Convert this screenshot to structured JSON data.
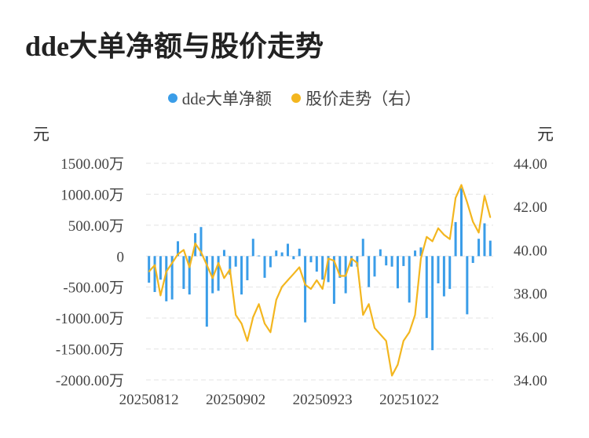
{
  "chart_data": {
    "type": "bar+line",
    "title": "dde大单净额与股价走势",
    "left_unit": "元",
    "right_unit": "元",
    "legend": [
      {
        "name": "dde大单净额",
        "color": "#3a9de8"
      },
      {
        "name": "股价走势（右）",
        "color": "#f3b61f"
      }
    ],
    "y_left": {
      "min": -2000,
      "max": 1500,
      "ticks": [
        {
          "value": 1500,
          "label": "1500.00万"
        },
        {
          "value": 1000,
          "label": "1000.00万"
        },
        {
          "value": 500,
          "label": "500.00万"
        },
        {
          "value": 0,
          "label": "0"
        },
        {
          "value": -500,
          "label": "-500.00万"
        },
        {
          "value": -1000,
          "label": "-1000.00万"
        },
        {
          "value": -1500,
          "label": "-1500.00万"
        },
        {
          "value": -2000,
          "label": "-2000.00万"
        }
      ]
    },
    "y_right": {
      "min": 34,
      "max": 44,
      "ticks": [
        {
          "value": 44,
          "label": "44.00"
        },
        {
          "value": 42,
          "label": "42.00"
        },
        {
          "value": 40,
          "label": "40.00"
        },
        {
          "value": 38,
          "label": "38.00"
        },
        {
          "value": 36,
          "label": "36.00"
        },
        {
          "value": 34,
          "label": "34.00"
        }
      ]
    },
    "x_ticks": [
      {
        "index": 0,
        "label": "20250812"
      },
      {
        "index": 15,
        "label": "20250902"
      },
      {
        "index": 30,
        "label": "20250923"
      },
      {
        "index": 45,
        "label": "20251022"
      }
    ],
    "grid": "horizontal-dashed",
    "series": [
      {
        "name": "dde大单净额",
        "type": "bar",
        "axis": "left",
        "color": "#3a9de8",
        "values": [
          -430,
          -580,
          -380,
          -730,
          -700,
          240,
          -530,
          -620,
          370,
          470,
          -1140,
          -600,
          -560,
          100,
          -300,
          -170,
          -620,
          -390,
          280,
          10,
          -350,
          -180,
          90,
          60,
          200,
          -50,
          120,
          -1070,
          -100,
          -250,
          -380,
          -420,
          -770,
          -350,
          -600,
          -170,
          -170,
          280,
          -500,
          -330,
          110,
          -150,
          -170,
          -520,
          -160,
          -750,
          90,
          140,
          -1000,
          -1520,
          -440,
          -650,
          -530,
          550,
          1100,
          -940,
          -110,
          280,
          530,
          250
        ]
      },
      {
        "name": "股价走势（右）",
        "type": "line",
        "axis": "right",
        "color": "#f3b61f",
        "values": [
          39.0,
          39.3,
          37.9,
          39.0,
          39.4,
          39.8,
          40.0,
          39.2,
          40.3,
          39.9,
          39.3,
          38.7,
          39.4,
          38.7,
          39.1,
          37.0,
          36.6,
          35.8,
          36.9,
          37.5,
          36.6,
          36.2,
          37.7,
          38.3,
          38.6,
          38.9,
          39.2,
          38.4,
          38.2,
          38.6,
          38.2,
          39.6,
          39.5,
          38.8,
          38.8,
          39.6,
          39.4,
          37.0,
          37.5,
          36.4,
          36.1,
          35.8,
          34.2,
          34.7,
          35.8,
          36.2,
          37.0,
          39.6,
          40.6,
          40.4,
          41.0,
          40.7,
          40.5,
          42.4,
          43.0,
          42.2,
          41.3,
          40.8,
          42.5,
          41.5
        ]
      }
    ]
  }
}
